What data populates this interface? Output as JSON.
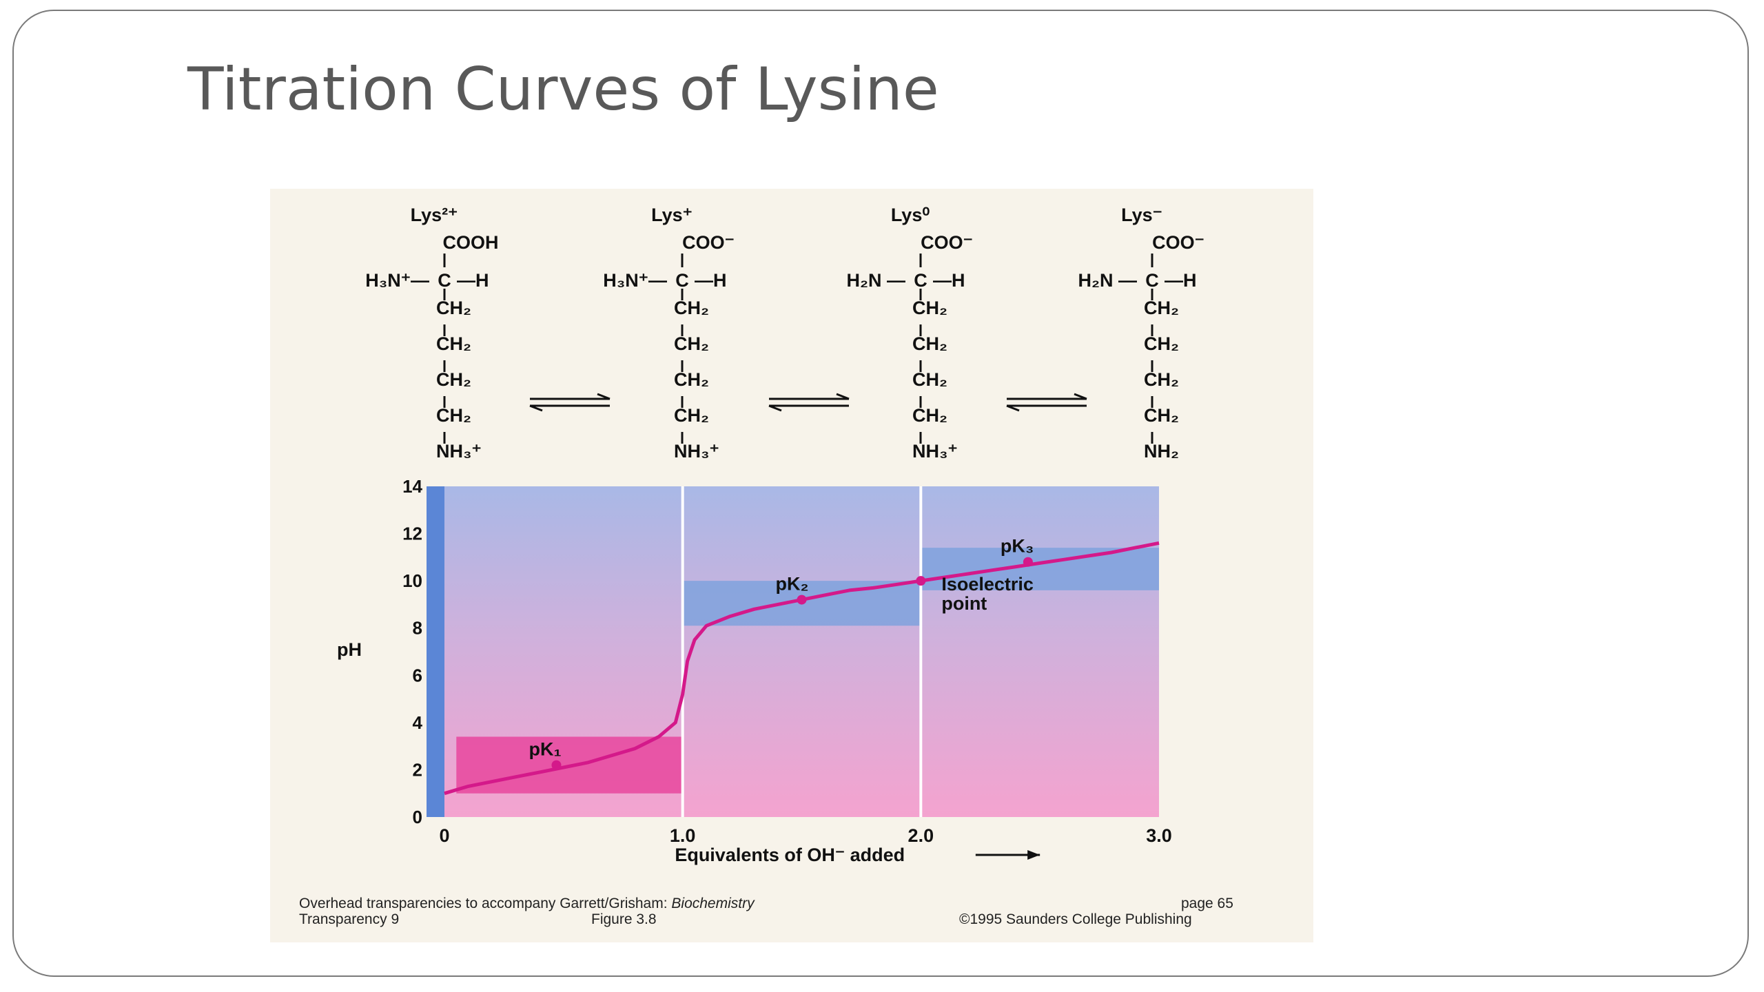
{
  "slide": {
    "title": "Titration Curves of Lysine"
  },
  "species": [
    {
      "name": "Lys²⁺",
      "top": "COOH",
      "left_group": "H₃N⁺—",
      "alpha_c": "C",
      "right_group": "—H",
      "chain": [
        "CH₂",
        "CH₂",
        "CH₂",
        "CH₂"
      ],
      "terminal": "NH₃⁺"
    },
    {
      "name": "Lys⁺",
      "top": "COO⁻",
      "left_group": "H₃N⁺—",
      "alpha_c": "C",
      "right_group": "—H",
      "chain": [
        "CH₂",
        "CH₂",
        "CH₂",
        "CH₂"
      ],
      "terminal": "NH₃⁺"
    },
    {
      "name": "Lys⁰",
      "top": "COO⁻",
      "left_group": "H₂N —",
      "alpha_c": "C",
      "right_group": "—H",
      "chain": [
        "CH₂",
        "CH₂",
        "CH₂",
        "CH₂"
      ],
      "terminal": "NH₃⁺"
    },
    {
      "name": "Lys⁻",
      "top": "COO⁻",
      "left_group": "H₂N —",
      "alpha_c": "C",
      "right_group": "—H",
      "chain": [
        "CH₂",
        "CH₂",
        "CH₂",
        "CH₂"
      ],
      "terminal": "NH₂"
    }
  ],
  "chart_data": {
    "type": "line",
    "xlabel": "Equivalents of OH⁻ added",
    "ylabel": "pH",
    "xlim": [
      0,
      3.0
    ],
    "ylim": [
      0,
      14
    ],
    "x_ticks": [
      "0",
      "1.0",
      "2.0",
      "3.0"
    ],
    "y_ticks": [
      "0",
      "2",
      "4",
      "6",
      "8",
      "10",
      "12",
      "14"
    ],
    "series": [
      {
        "x": [
          0,
          0.1,
          0.2,
          0.3,
          0.4,
          0.5,
          0.6,
          0.7,
          0.8,
          0.9,
          0.97,
          1.0,
          1.02,
          1.05,
          1.1,
          1.2,
          1.3,
          1.4,
          1.5,
          1.6,
          1.7,
          1.8,
          1.9,
          2.0,
          2.1,
          2.2,
          2.3,
          2.4,
          2.5,
          2.6,
          2.7,
          2.8,
          2.9,
          3.0
        ],
        "y": [
          1.0,
          1.3,
          1.5,
          1.7,
          1.9,
          2.1,
          2.3,
          2.6,
          2.9,
          3.4,
          4.0,
          5.2,
          6.6,
          7.5,
          8.1,
          8.5,
          8.8,
          9.0,
          9.2,
          9.4,
          9.6,
          9.7,
          9.85,
          10.0,
          10.15,
          10.3,
          10.45,
          10.6,
          10.75,
          10.9,
          11.05,
          11.2,
          11.4,
          11.6
        ]
      }
    ],
    "points": [
      {
        "label": "pK₁",
        "x": 0.47,
        "y": 2.2
      },
      {
        "label": "pK₂",
        "x": 1.5,
        "y": 9.2
      },
      {
        "label": "Isoelectric point",
        "x": 2.0,
        "y": 10.0
      },
      {
        "label": "pK₃",
        "x": 2.45,
        "y": 10.8
      }
    ],
    "buffer_bands": [
      {
        "x": [
          0.05,
          1.0
        ],
        "y": [
          1.0,
          3.4
        ]
      },
      {
        "x": [
          1.0,
          2.0
        ],
        "y": [
          8.1,
          10.0
        ]
      },
      {
        "x": [
          2.0,
          3.0
        ],
        "y": [
          9.6,
          11.4
        ]
      }
    ],
    "colors": {
      "curve": "#d4198a",
      "background_top": "#a9b8e6",
      "background_bottom": "#f2a0cc",
      "band_blue": "#7fa2dd",
      "band_pink": "#e8479e",
      "axis_bar": "#5b86d6"
    }
  },
  "isoelectric_label_lines": [
    "Isoelectric",
    "point"
  ],
  "footer": {
    "left_line1_prefix": "Overhead transparencies to accompany Garrett/Grisham: ",
    "left_line1_italic": "Biochemistry",
    "right_line1": "page  65",
    "left_line2": "Transparency 9",
    "mid_line2": "Figure  3.8",
    "right_line2": "©1995 Saunders College Publishing"
  }
}
